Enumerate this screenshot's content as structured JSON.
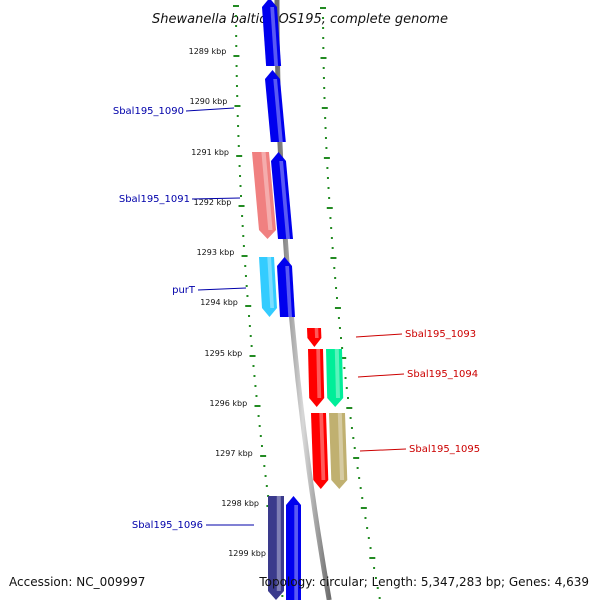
{
  "title": "Shewanella baltica OS195, complete genome",
  "accession": "Accession: NC_009997",
  "summary": "Topology: circular; Length: 5,347,283 bp; Genes: 4,639",
  "colors": {
    "left_label": "#0000aa",
    "right_label": "#cc0000",
    "tick": "#228b22",
    "backbone": "#888888",
    "forward_gene": "#0000ee",
    "navy_gene": "#3a3a8c"
  },
  "ruler": [
    {
      "label": "1289 kbp"
    },
    {
      "label": "1290 kbp"
    },
    {
      "label": "1291 kbp"
    },
    {
      "label": "1292 kbp"
    },
    {
      "label": "1293 kbp"
    },
    {
      "label": "1294 kbp"
    },
    {
      "label": "1295 kbp"
    },
    {
      "label": "1296 kbp"
    },
    {
      "label": "1297 kbp"
    },
    {
      "label": "1298 kbp"
    },
    {
      "label": "1299 kbp"
    }
  ],
  "genes": [
    {
      "id": "g1",
      "strand": "+",
      "color": "#0000ee",
      "label": ""
    },
    {
      "id": "g2",
      "strand": "+",
      "color": "#0000ee",
      "label": "Sbal195_1090"
    },
    {
      "id": "g3",
      "strand": "+",
      "color": "#0000ee",
      "label": ""
    },
    {
      "id": "g4",
      "strand": "-",
      "color": "#f08080",
      "label": "Sbal195_1091"
    },
    {
      "id": "g5",
      "strand": "+",
      "color": "#0000ee",
      "label": ""
    },
    {
      "id": "g6",
      "strand": "-",
      "color": "#33ccff",
      "label": "purT"
    },
    {
      "id": "g7",
      "strand": "-",
      "color": "#ff0000",
      "label": "Sbal195_1093"
    },
    {
      "id": "g8",
      "strand": "-",
      "color": "#ff0000",
      "label": ""
    },
    {
      "id": "g9",
      "strand": "-",
      "color": "#00ee99",
      "label": "Sbal195_1094"
    },
    {
      "id": "g10",
      "strand": "-",
      "color": "#ff0000",
      "label": ""
    },
    {
      "id": "g11",
      "strand": "-",
      "color": "#c0b070",
      "label": "Sbal195_1095"
    },
    {
      "id": "g12",
      "strand": "-",
      "color": "#3a3a8c",
      "label": "Sbal195_1096"
    },
    {
      "id": "g13",
      "strand": "+",
      "color": "#0000ee",
      "label": ""
    }
  ]
}
